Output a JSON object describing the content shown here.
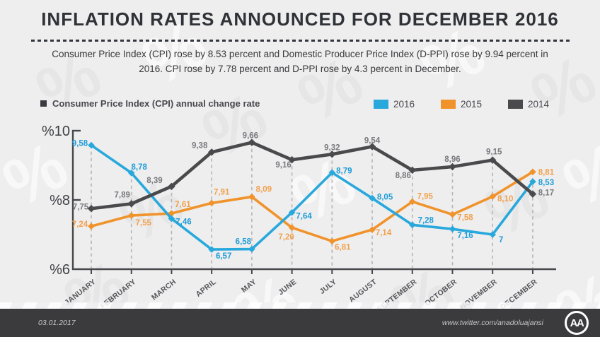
{
  "header": {
    "title": "INFLATION RATES ANNOUNCED FOR DECEMBER 2016",
    "subtitle": "Consumer Price Index (CPI) rose by 8.53 percent and Domestic Producer Price Index (D-PPI) rose by 9.94 percent in\n2016. CPI rose by 7.78 percent and D-PPI rose by 4.3 percent in December."
  },
  "legend": {
    "note": "Consumer Price Index (CPI) annual change rate",
    "items": [
      {
        "label": "2016",
        "color": "#29A8DC"
      },
      {
        "label": "2015",
        "color": "#F0932B"
      },
      {
        "label": "2014",
        "color": "#4A4A4C"
      }
    ]
  },
  "chart_data": {
    "type": "line",
    "title": "Consumer Price Index (CPI) annual change rate",
    "categories": [
      "JANUARY",
      "FEBRUARY",
      "MARCH",
      "APRIL",
      "MAY",
      "JUNE",
      "JULY",
      "AUGUST",
      "SEPTEMBER",
      "OCTOBER",
      "NOVEMBER",
      "DECEMBER"
    ],
    "y_axis": {
      "tick_labels": [
        "%10",
        "%8",
        "%6"
      ],
      "tick_values": [
        10,
        8,
        6
      ],
      "min": 6,
      "max": 10,
      "unit": "percent"
    },
    "grid": "vertical-dashed",
    "legend_position": "top-right",
    "series": [
      {
        "name": "2016",
        "color": "#29A8DC",
        "label_color": "#1E9CD7",
        "values": [
          9.58,
          8.78,
          7.46,
          6.57,
          6.58,
          7.64,
          8.79,
          8.05,
          7.28,
          7.16,
          7.0,
          8.53
        ],
        "labels": [
          "9,58",
          "8,78",
          "7,46",
          "6,57",
          "6,58",
          "7,64",
          "8,79",
          "8,05",
          "7,28",
          "7,16",
          "7",
          "8,53"
        ]
      },
      {
        "name": "2015",
        "color": "#F0932B",
        "label_color": "#F2A04C",
        "values": [
          7.24,
          7.55,
          7.61,
          7.91,
          8.09,
          7.2,
          6.81,
          7.14,
          7.95,
          7.58,
          8.1,
          8.81
        ],
        "labels": [
          "7,24",
          "7,55",
          "7,61",
          "7,91",
          "8,09",
          "7,20",
          "6,81",
          "7,14",
          "7,95",
          "7,58",
          "8,10",
          "8,81"
        ]
      },
      {
        "name": "2014",
        "color": "#4A4A4C",
        "label_color": "#7A7B7F",
        "values": [
          7.75,
          7.89,
          8.39,
          9.38,
          9.66,
          9.16,
          9.32,
          9.54,
          8.86,
          8.96,
          9.15,
          8.17
        ],
        "labels": [
          "7,75",
          "7,89",
          "8,39",
          "9,38",
          "9,66",
          "9,16",
          "9,32",
          "9,54",
          "8,86",
          "8,96",
          "9,15",
          "8,17"
        ]
      }
    ]
  },
  "footer": {
    "date": "03.01.2017",
    "handle": "www.twitter.com/anadoluajansi",
    "logo_text": "AA"
  }
}
